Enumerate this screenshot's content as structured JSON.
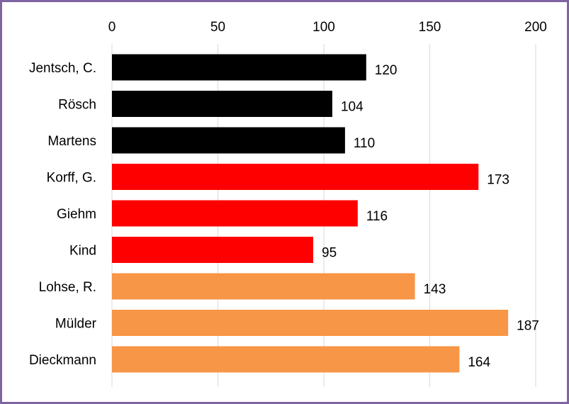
{
  "chart_data": {
    "type": "bar",
    "orientation": "horizontal",
    "title": "",
    "xlabel": "",
    "ylabel": "",
    "xlim": [
      0,
      200
    ],
    "x_ticks": [
      0,
      50,
      100,
      150,
      200
    ],
    "x_axis_position": "top",
    "grid": "vertical",
    "legend": "none",
    "categories": [
      "Jentsch, C.",
      "Rösch",
      "Martens",
      "Korff, G.",
      "Giehm",
      "Kind",
      "Lohse, R.",
      "Mülder",
      "Dieckmann"
    ],
    "values": [
      120,
      104,
      110,
      173,
      116,
      95,
      143,
      187,
      164
    ],
    "bar_colors": [
      "#000000",
      "#000000",
      "#000000",
      "#ff0000",
      "#ff0000",
      "#ff0000",
      "#f79646",
      "#f79646",
      "#f79646"
    ],
    "data_labels": true
  },
  "colors": {
    "frame": "#8064a2",
    "grid": "#d9d9d9"
  }
}
